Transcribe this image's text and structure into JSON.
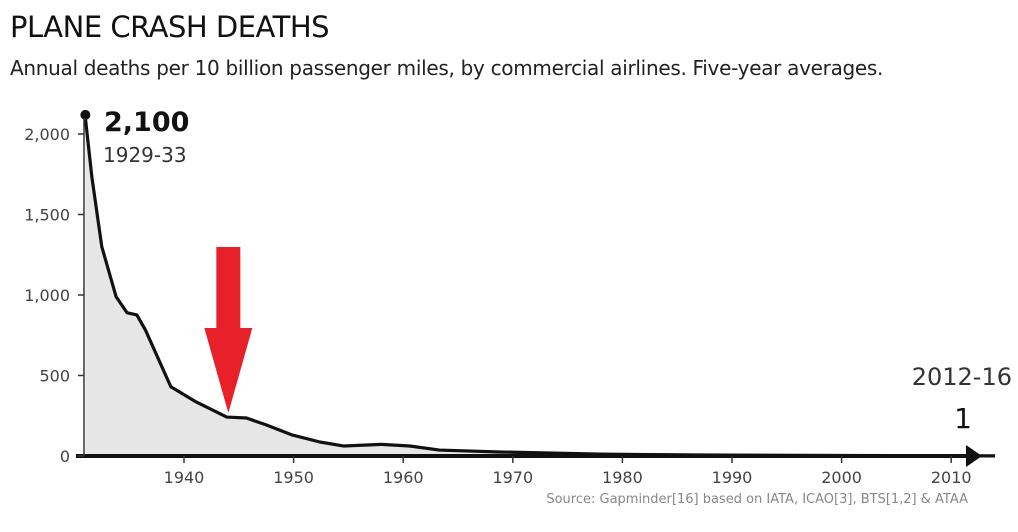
{
  "chart_data": {
    "type": "area",
    "title": "PLANE CRASH DEATHS",
    "subtitle": "Annual deaths per 10 billion passenger miles, by commercial airlines. Five-year averages.",
    "xlabel": "",
    "ylabel": "",
    "xlim": [
      1931,
      2014
    ],
    "ylim": [
      0,
      2100
    ],
    "grid": false,
    "x_ticks": [
      "1940",
      "1950",
      "1960",
      "1970",
      "1980",
      "1990",
      "2000",
      "2010"
    ],
    "y_ticks": [
      "0",
      "500",
      "1,000",
      "1,500",
      "2,000"
    ],
    "points": [
      [
        1931,
        2100
      ],
      [
        1931.6,
        1730
      ],
      [
        1932.5,
        1300
      ],
      [
        1933.8,
        990
      ],
      [
        1934.8,
        890
      ],
      [
        1935.7,
        876
      ],
      [
        1936.5,
        780
      ],
      [
        1938.8,
        430
      ],
      [
        1941,
        340
      ],
      [
        1943.9,
        242
      ],
      [
        1945.7,
        236
      ],
      [
        1947.5,
        193
      ],
      [
        1949.9,
        130
      ],
      [
        1952.4,
        87
      ],
      [
        1954.6,
        62
      ],
      [
        1958,
        72
      ],
      [
        1960.6,
        62
      ],
      [
        1963.3,
        37
      ],
      [
        1968.8,
        25
      ],
      [
        1977.9,
        12
      ],
      [
        1987,
        6
      ],
      [
        2000,
        3
      ],
      [
        2014,
        1
      ]
    ],
    "annotations": {
      "start_value": "2,100",
      "start_period": "1929-33",
      "end_value": "1",
      "end_period": "2012-16"
    },
    "highlight_arrow_year": 1944,
    "colors": {
      "line": "#111111",
      "fill": "#e6e6e6",
      "arrow": "#e8202a"
    },
    "source": "Source: Gapminder[16] based on IATA, ICAO[3], BTS[1,2] & ATAA"
  }
}
